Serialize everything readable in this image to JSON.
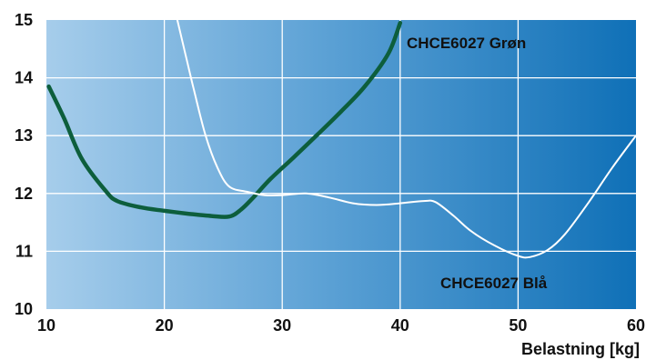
{
  "chart_data": {
    "type": "line",
    "title": "",
    "xlabel": "Belastning [kg]",
    "ylabel": "",
    "xlim": [
      10,
      60
    ],
    "ylim": [
      10,
      15
    ],
    "xticks": [
      10,
      20,
      30,
      40,
      50,
      60
    ],
    "yticks": [
      10,
      11,
      12,
      13,
      14,
      15
    ],
    "grid": true,
    "legend": "labels next to lines",
    "series": [
      {
        "name": "CHCE6027 Grøn",
        "color": "#0d5e3c",
        "x": [
          10.2,
          11.5,
          13.0,
          15.0,
          16.0,
          18.0,
          20.0,
          22.0,
          24.0,
          25.5,
          26.5,
          27.5,
          29.0,
          31.0,
          33.0,
          35.0,
          37.0,
          39.0,
          40.0
        ],
        "y": [
          13.85,
          13.3,
          12.6,
          12.05,
          11.87,
          11.76,
          11.7,
          11.65,
          11.61,
          11.6,
          11.72,
          11.92,
          12.25,
          12.63,
          13.02,
          13.42,
          13.85,
          14.42,
          14.95
        ]
      },
      {
        "name": "CHCE6027 Blå",
        "color": "#ffffff",
        "x": [
          21.1,
          21.8,
          22.5,
          23.5,
          24.5,
          25.5,
          27.0,
          28.5,
          30.0,
          32.0,
          34.0,
          36.0,
          38.0,
          40.0,
          42.0,
          43.0,
          44.5,
          46.0,
          48.0,
          50.0,
          51.0,
          52.5,
          54.0,
          56.0,
          58.0,
          60.0
        ],
        "y": [
          15.0,
          14.4,
          13.8,
          13.0,
          12.45,
          12.12,
          12.03,
          11.97,
          11.97,
          12.0,
          11.93,
          11.83,
          11.8,
          11.83,
          11.87,
          11.85,
          11.62,
          11.35,
          11.1,
          10.92,
          10.9,
          11.02,
          11.3,
          11.85,
          12.45,
          13.0
        ]
      }
    ]
  }
}
